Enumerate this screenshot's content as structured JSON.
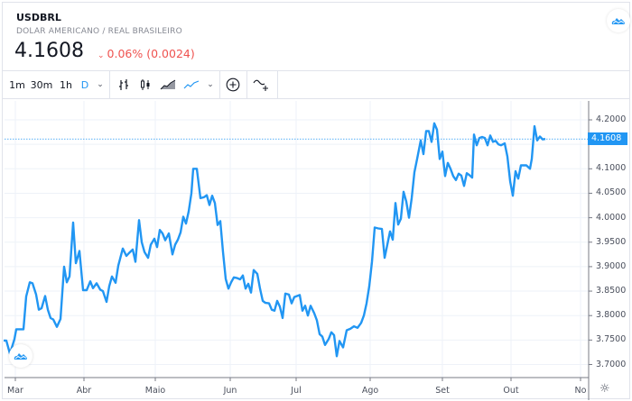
{
  "header": {
    "symbol": "USDBRL",
    "description": "DOLAR AMERICANO / REAL BRASILEIRO",
    "price": "4.1608",
    "change_arrow": "⌄",
    "change": "0.06% (0.0024)",
    "change_color": "#ef5350"
  },
  "toolbar": {
    "intervals": [
      "1m",
      "30m",
      "1h",
      "D"
    ],
    "active_interval": "D",
    "interval_dropdown": "⌄",
    "chart_type_dropdown": "⌄",
    "add_icon": "⊕"
  },
  "colors": {
    "line": "#2196f3",
    "grid": "#eef2f8",
    "axis_text": "#4a4f5c"
  },
  "price_axis": {
    "last_value": "4.1608",
    "gear_icon": "☼"
  },
  "chart_data": {
    "type": "line",
    "title": "USDBRL",
    "xlabel": "",
    "ylabel": "",
    "x_ticks": [
      "Mar",
      "Abr",
      "Maio",
      "Jun",
      "Jul",
      "Ago",
      "Set",
      "Out",
      "No"
    ],
    "y_ticks": [
      "4.2000",
      "4.1500",
      "4.1000",
      "4.0500",
      "4.0000",
      "3.9500",
      "3.9000",
      "3.8500",
      "3.8000",
      "3.7500",
      "3.7000"
    ],
    "ylim": [
      3.68,
      4.22
    ],
    "last_value": 4.1608,
    "grid": true,
    "legend": null,
    "series": [
      {
        "name": "USDBRL",
        "points": [
          [
            4,
            3.749
          ],
          [
            7,
            3.749
          ],
          [
            11,
            3.722
          ],
          [
            16,
            3.752
          ],
          [
            18,
            3.772
          ],
          [
            24,
            3.772
          ],
          [
            26,
            3.772
          ],
          [
            29,
            3.839
          ],
          [
            33,
            3.868
          ],
          [
            36,
            3.866
          ],
          [
            40,
            3.843
          ],
          [
            43,
            3.812
          ],
          [
            46,
            3.815
          ],
          [
            50,
            3.84
          ],
          [
            53,
            3.812
          ],
          [
            56,
            3.795
          ],
          [
            59,
            3.792
          ],
          [
            63,
            3.777
          ],
          [
            67,
            3.793
          ],
          [
            71,
            3.9
          ],
          [
            74,
            3.868
          ],
          [
            77,
            3.88
          ],
          [
            81,
            3.99
          ],
          [
            84,
            3.907
          ],
          [
            88,
            3.932
          ],
          [
            92,
            3.852
          ],
          [
            96,
            3.852
          ],
          [
            100,
            3.87
          ],
          [
            103,
            3.856
          ],
          [
            107,
            3.866
          ],
          [
            111,
            3.853
          ],
          [
            114,
            3.85
          ],
          [
            118,
            3.828
          ],
          [
            121,
            3.86
          ],
          [
            124,
            3.88
          ],
          [
            128,
            3.867
          ],
          [
            131,
            3.902
          ],
          [
            136,
            3.937
          ],
          [
            140,
            3.922
          ],
          [
            143,
            3.928
          ],
          [
            147,
            3.935
          ],
          [
            150,
            3.91
          ],
          [
            154,
            3.995
          ],
          [
            157,
            3.95
          ],
          [
            160,
            3.93
          ],
          [
            164,
            3.918
          ],
          [
            167,
            3.945
          ],
          [
            171,
            3.957
          ],
          [
            174,
            3.94
          ],
          [
            177,
            3.975
          ],
          [
            180,
            3.968
          ],
          [
            183,
            3.954
          ],
          [
            187,
            3.968
          ],
          [
            191,
            3.925
          ],
          [
            194,
            3.945
          ],
          [
            197,
            3.955
          ],
          [
            200,
            3.97
          ],
          [
            203,
            4.002
          ],
          [
            206,
            3.988
          ],
          [
            209,
            4.013
          ],
          [
            212,
            4.05
          ],
          [
            214,
            4.1
          ],
          [
            218,
            4.1
          ],
          [
            222,
            4.04
          ],
          [
            226,
            4.042
          ],
          [
            229,
            4.046
          ],
          [
            232,
            4.026
          ],
          [
            235,
            4.045
          ],
          [
            238,
            4.03
          ],
          [
            241,
            3.985
          ],
          [
            244,
            3.993
          ],
          [
            247,
            3.93
          ],
          [
            250,
            3.875
          ],
          [
            253,
            3.855
          ],
          [
            256,
            3.868
          ],
          [
            259,
            3.878
          ],
          [
            262,
            3.877
          ],
          [
            266,
            3.874
          ],
          [
            269,
            3.882
          ],
          [
            272,
            3.855
          ],
          [
            275,
            3.865
          ],
          [
            278,
            3.847
          ],
          [
            281,
            3.893
          ],
          [
            285,
            3.885
          ],
          [
            288,
            3.855
          ],
          [
            291,
            3.83
          ],
          [
            294,
            3.826
          ],
          [
            298,
            3.825
          ],
          [
            301,
            3.812
          ],
          [
            304,
            3.81
          ],
          [
            307,
            3.83
          ],
          [
            310,
            3.818
          ],
          [
            313,
            3.795
          ],
          [
            316,
            3.845
          ],
          [
            320,
            3.843
          ],
          [
            323,
            3.825
          ],
          [
            326,
            3.838
          ],
          [
            329,
            3.84
          ],
          [
            332,
            3.842
          ],
          [
            335,
            3.81
          ],
          [
            338,
            3.82
          ],
          [
            341,
            3.8
          ],
          [
            344,
            3.82
          ],
          [
            348,
            3.805
          ],
          [
            351,
            3.79
          ],
          [
            354,
            3.762
          ],
          [
            357,
            3.757
          ],
          [
            360,
            3.74
          ],
          [
            364,
            3.752
          ],
          [
            367,
            3.766
          ],
          [
            370,
            3.76
          ],
          [
            373,
            3.717
          ],
          [
            376,
            3.748
          ],
          [
            380,
            3.735
          ],
          [
            384,
            3.77
          ],
          [
            388,
            3.773
          ],
          [
            392,
            3.778
          ],
          [
            396,
            3.775
          ],
          [
            400,
            3.785
          ],
          [
            403,
            3.8
          ],
          [
            406,
            3.825
          ],
          [
            409,
            3.86
          ],
          [
            412,
            3.91
          ],
          [
            415,
            3.98
          ],
          [
            419,
            3.978
          ],
          [
            423,
            3.977
          ],
          [
            426,
            3.918
          ],
          [
            429,
            3.945
          ],
          [
            432,
            3.972
          ],
          [
            435,
            3.955
          ],
          [
            438,
            4.03
          ],
          [
            441,
            3.986
          ],
          [
            444,
            3.998
          ],
          [
            447,
            4.053
          ],
          [
            450,
            4.033
          ],
          [
            453,
            4.0
          ],
          [
            456,
            4.04
          ],
          [
            459,
            4.093
          ],
          [
            462,
            4.12
          ],
          [
            466,
            4.158
          ],
          [
            469,
            4.13
          ],
          [
            472,
            4.177
          ],
          [
            475,
            4.177
          ],
          [
            478,
            4.155
          ],
          [
            481,
            4.193
          ],
          [
            484,
            4.18
          ],
          [
            487,
            4.12
          ],
          [
            490,
            4.135
          ],
          [
            493,
            4.085
          ],
          [
            496,
            4.112
          ],
          [
            499,
            4.1
          ],
          [
            502,
            4.085
          ],
          [
            505,
            4.077
          ],
          [
            508,
            4.09
          ],
          [
            511,
            4.086
          ],
          [
            514,
            4.065
          ],
          [
            517,
            4.091
          ],
          [
            520,
            4.087
          ],
          [
            523,
            4.082
          ],
          [
            525,
            4.17
          ],
          [
            528,
            4.148
          ],
          [
            531,
            4.163
          ],
          [
            534,
            4.165
          ],
          [
            537,
            4.163
          ],
          [
            540,
            4.148
          ],
          [
            543,
            4.168
          ],
          [
            546,
            4.155
          ],
          [
            549,
            4.157
          ],
          [
            552,
            4.15
          ],
          [
            555,
            4.148
          ],
          [
            559,
            4.152
          ],
          [
            562,
            4.125
          ],
          [
            565,
            4.075
          ],
          [
            568,
            4.045
          ],
          [
            571,
            4.095
          ],
          [
            574,
            4.08
          ],
          [
            577,
            4.107
          ],
          [
            580,
            4.107
          ],
          [
            583,
            4.107
          ],
          [
            587,
            4.1
          ],
          [
            589,
            4.12
          ],
          [
            592,
            4.187
          ],
          [
            595,
            4.158
          ],
          [
            598,
            4.166
          ],
          [
            601,
            4.16
          ],
          [
            604,
            4.161
          ]
        ]
      }
    ]
  }
}
